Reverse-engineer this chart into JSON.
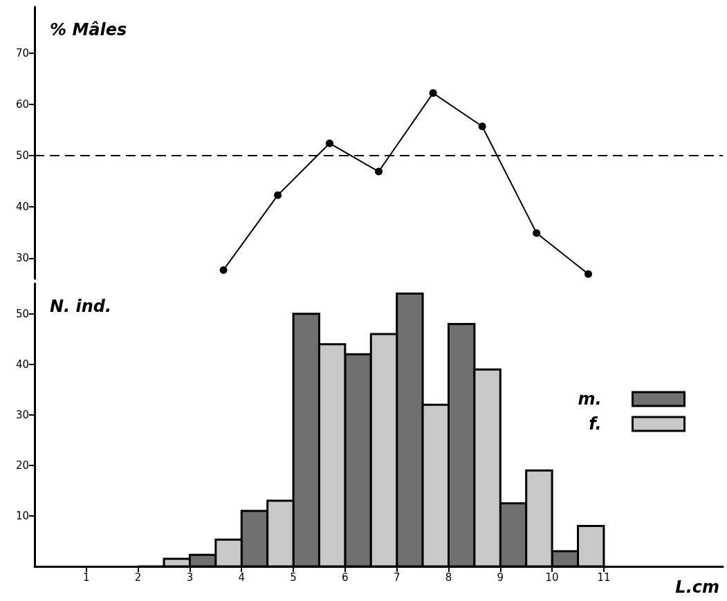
{
  "chart_data": [
    {
      "type": "line",
      "ylabel": "% Mâles",
      "x": [
        3.65,
        4.7,
        5.7,
        6.65,
        7.7,
        8.65,
        9.7,
        10.7
      ],
      "values": [
        27.7,
        42.3,
        52.4,
        46.9,
        62.2,
        55.7,
        34.9,
        26.9
      ],
      "color": "#000000",
      "xlim": [
        0,
        13.3
      ],
      "ylim": [
        26,
        79
      ],
      "yticks": [
        30,
        40,
        50,
        60,
        70
      ],
      "tick_labels": "y",
      "marker": "circle",
      "line_style": "solid",
      "ref_lines": [
        {
          "axis": "y",
          "value": 50,
          "line_style": "dashed",
          "color": "#000000"
        }
      ]
    },
    {
      "type": "histogram",
      "ylabel": "N. ind.",
      "xlabel": "L.cm",
      "bins": [
        2,
        3,
        4,
        5,
        6,
        7,
        8,
        9,
        10,
        11
      ],
      "series": [
        {
          "name": "m.",
          "color": "#707070",
          "values": [
            0,
            2.3,
            11,
            50,
            42,
            54,
            48,
            12.5,
            3
          ]
        },
        {
          "name": "f.",
          "color": "#c8c8c8",
          "values": [
            1.5,
            5.3,
            13,
            44,
            46,
            32,
            39,
            19,
            8
          ]
        }
      ],
      "xlim": [
        0,
        13.3
      ],
      "xticks": [
        1,
        2,
        3,
        4,
        5,
        6,
        7,
        8,
        9,
        10,
        11
      ],
      "ylim": [
        0,
        56
      ],
      "yticks": [
        10,
        20,
        30,
        40,
        50
      ],
      "legend": "right"
    }
  ]
}
